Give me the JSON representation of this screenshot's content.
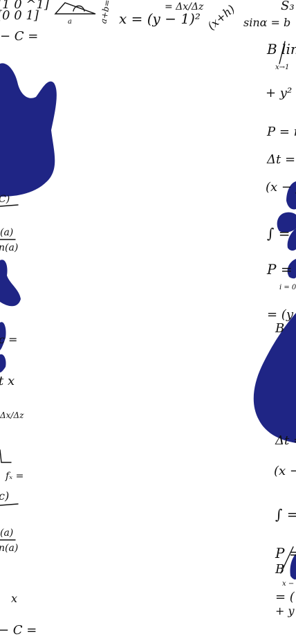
{
  "colors": {
    "background": "#ffffff",
    "blob": "#1f2585",
    "ink": "#111111"
  },
  "formulas": {
    "top": {
      "matrix_row1": "[1 0 ^1]",
      "matrix_row2": "[0 0 1]",
      "x_eq": "x = (y − 1)²",
      "delta_frac": "= Δx/Δz",
      "x_plus_h": "(x+h)",
      "sin_a": "sinα = b",
      "s3": "S₃",
      "c_eq": "− C ="
    },
    "right": {
      "lim": "B lim",
      "lim_sub": "x→1",
      "y_sq": "+ y² =",
      "p_r": "P = r²",
      "delta_t": "Δt =",
      "x_minus_y": "(x − y",
      "integral": "∫ =",
      "p_sum": "P = Σ",
      "sum_sub": "i = 0",
      "eq_y": "= (y −",
      "b_letter": "B",
      "delta_t2": "Δt =",
      "x_minus_2": "(x −",
      "integral2": "∫ =",
      "p_eq2": "P =",
      "b2": "B",
      "x_arrow": "x −",
      "eq_paren": "= (",
      "plus_y": "+ y"
    },
    "left": {
      "c_top": "C)",
      "a_frac_num": "(a)",
      "a_frac_den": "n(a)",
      "c_eq1": "c =",
      "t_x": "t  x",
      "dx_dz": "Δx/Δz",
      "fx_eq": "fₓ =",
      "c_paren": "c)",
      "a2_num": "(a)",
      "a2_den": "n(a)",
      "x_letter": "x",
      "c_eq2": "− C ="
    }
  }
}
